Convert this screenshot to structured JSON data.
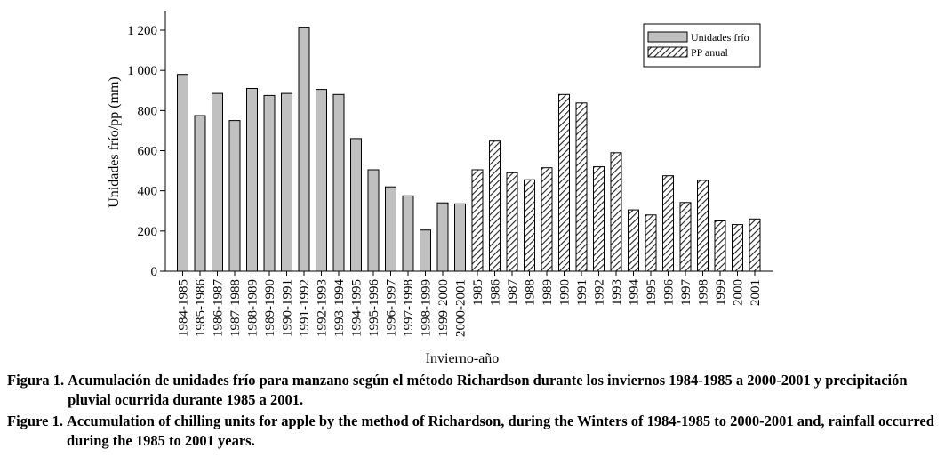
{
  "chart_data": {
    "type": "bar",
    "title": "",
    "xlabel": "Invierno-año",
    "ylabel": "Unidades frío/pp (mm)",
    "ylim": [
      0,
      1300
    ],
    "yticks": [
      0,
      200,
      400,
      600,
      800,
      1000,
      1200
    ],
    "ytick_labels": [
      "0",
      "200",
      "400",
      "600",
      "800",
      "1 000",
      "1 200"
    ],
    "grid": false,
    "legend_position": "top-right",
    "categories": [
      "1984-1985",
      "1985-1986",
      "1986-1987",
      "1987-1988",
      "1988-1989",
      "1989-1990",
      "1990-1991",
      "1991-1992",
      "1992-1993",
      "1993-1994",
      "1994-1995",
      "1995-1996",
      "1996-1997",
      "1997-1998",
      "1998-1999",
      "1999-2000",
      "2000-2001",
      "1985",
      "1986",
      "1987",
      "1988",
      "1989",
      "1990",
      "1991",
      "1992",
      "1993",
      "1994",
      "1995",
      "1996",
      "1997",
      "1998",
      "1999",
      "2000",
      "2001"
    ],
    "series": [
      {
        "name": "Unidades frío",
        "color": "#c0c0c0",
        "pattern": "solid",
        "values": [
          980,
          775,
          885,
          750,
          910,
          875,
          885,
          1215,
          905,
          880,
          660,
          505,
          420,
          375,
          205,
          340,
          335,
          null,
          null,
          null,
          null,
          null,
          null,
          null,
          null,
          null,
          null,
          null,
          null,
          null,
          null,
          null,
          null,
          null
        ]
      },
      {
        "name": "PP anual",
        "color": "#888888",
        "pattern": "hatched",
        "values": [
          null,
          null,
          null,
          null,
          null,
          null,
          null,
          null,
          null,
          null,
          null,
          null,
          null,
          null,
          null,
          null,
          null,
          505,
          648,
          490,
          455,
          515,
          880,
          838,
          520,
          590,
          305,
          280,
          475,
          342,
          452,
          250,
          232,
          260
        ]
      }
    ]
  },
  "caption": {
    "es_label": "Figura 1.",
    "es_text": "Acumulación de unidades frío para manzano según el método Richardson durante los inviernos 1984-1985 a 2000-2001 y precipitación pluvial ocurrida durante 1985 a 2001.",
    "en_label": "Figure 1.",
    "en_text": "Accumulation of chilling units for apple by the method of Richardson, during the Winters of 1984-1985 to 2000-2001 and, rainfall occurred during the 1985 to 2001 years."
  }
}
